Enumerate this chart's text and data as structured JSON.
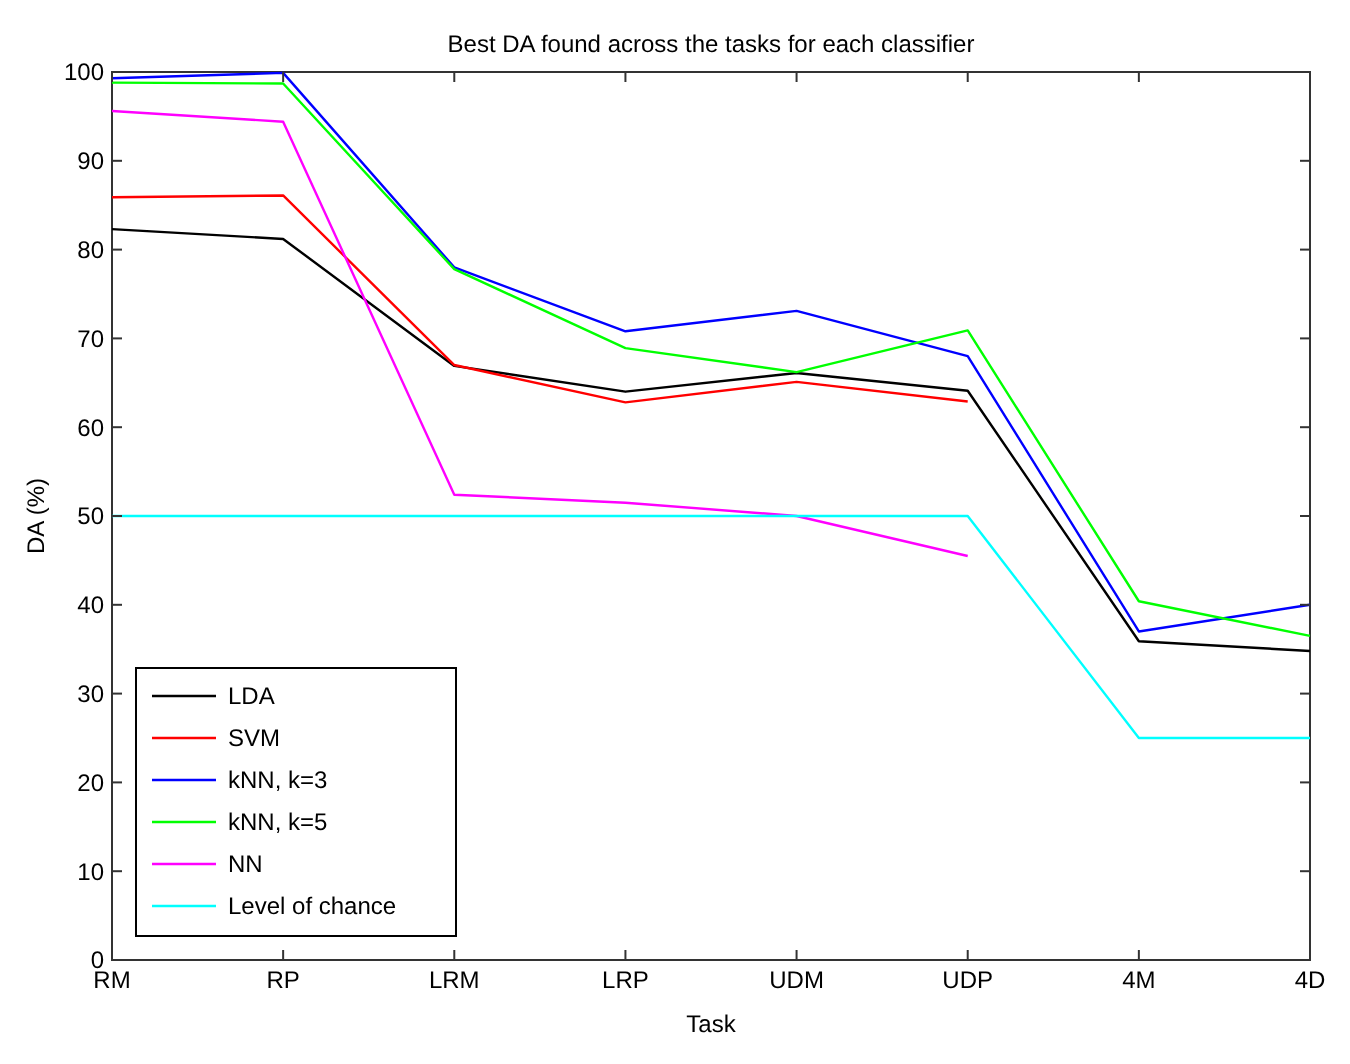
{
  "chart_data": {
    "type": "line",
    "title": "Best DA found across the tasks for each classifier",
    "xlabel": "Task",
    "ylabel": "DA (%)",
    "categories": [
      "RM",
      "RP",
      "LRM",
      "LRP",
      "UDM",
      "UDP",
      "4M",
      "4D"
    ],
    "ylim": [
      0,
      100
    ],
    "yticks": [
      0,
      10,
      20,
      30,
      40,
      50,
      60,
      70,
      80,
      90,
      100
    ],
    "grid": false,
    "legend": "bottom left",
    "marker": "none",
    "line_style": "solid",
    "series": [
      {
        "name": "LDA",
        "color": "#000000",
        "values": [
          82.3,
          81.2,
          66.9,
          64,
          66.1,
          64.1,
          35.9,
          34.8
        ]
      },
      {
        "name": "SVM",
        "color": "#ff0000",
        "values": [
          85.9,
          86.1,
          67,
          62.8,
          65.1,
          62.9,
          null,
          null
        ]
      },
      {
        "name": "kNN, k=3",
        "color": "#0000ff",
        "values": [
          99.3,
          99.9,
          78,
          70.8,
          73.1,
          68,
          37,
          40
        ]
      },
      {
        "name": "kNN, k=5",
        "color": "#00ff00",
        "values": [
          98.8,
          98.7,
          77.8,
          68.9,
          66.2,
          70.9,
          40.4,
          36.5
        ]
      },
      {
        "name": "NN",
        "color": "#ff00ff",
        "values": [
          95.6,
          94.4,
          52.4,
          51.5,
          50,
          45.5,
          null,
          null
        ]
      },
      {
        "name": "Level of chance",
        "color": "#00ffff",
        "values": [
          50,
          50,
          50,
          50,
          50,
          50,
          25,
          25
        ]
      }
    ]
  }
}
